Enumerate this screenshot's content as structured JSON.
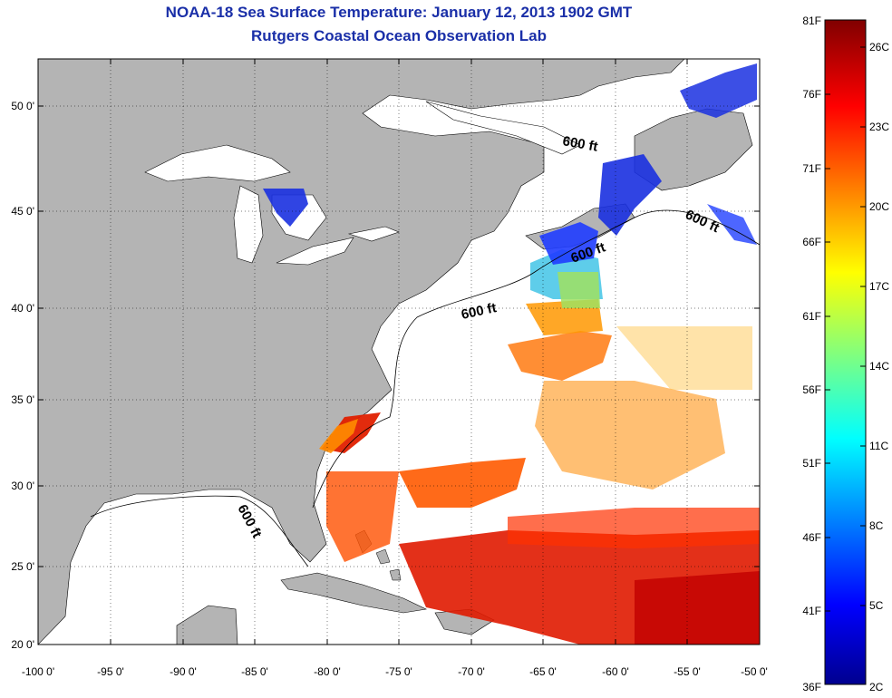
{
  "title": "NOAA-18 Sea Surface Temperature:  January 12, 2013 1902 GMT",
  "subtitle": "Rutgers Coastal Ocean Observation Lab",
  "map": {
    "lat_labels": [
      "50 0'",
      "45 0'",
      "40 0'",
      "35 0'",
      "30 0'",
      "25 0'",
      "20 0'"
    ],
    "lon_labels": [
      "-100 0'",
      "-95 0'",
      "-90 0'",
      "-85 0'",
      "-80 0'",
      "-75 0'",
      "-70 0'",
      "-65 0'",
      "-60 0'",
      "-55 0'",
      "-50 0'"
    ],
    "isobath_label": "600 ft",
    "land_color": "#b4b4b4",
    "ocean_color": "#ffffff"
  },
  "colorbar": {
    "f_labels": [
      "81F",
      "76F",
      "71F",
      "66F",
      "61F",
      "56F",
      "51F",
      "46F",
      "41F",
      "36F"
    ],
    "c_labels": [
      "26C",
      "23C",
      "20C",
      "17C",
      "14C",
      "11C",
      "8C",
      "5C",
      "2C"
    ],
    "colors": [
      "#7f0000",
      "#ff0000",
      "#ff8000",
      "#ffff00",
      "#80ff80",
      "#00ffff",
      "#0080ff",
      "#0000ff",
      "#00008f"
    ]
  }
}
